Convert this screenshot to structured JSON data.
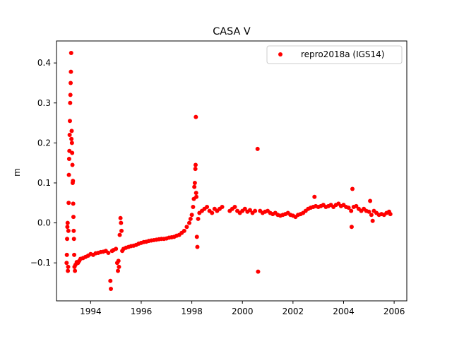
{
  "chart_data": {
    "type": "scatter",
    "title": "CASA V",
    "xlabel": "",
    "ylabel": "m",
    "xlim": [
      1992.65,
      2006.5
    ],
    "ylim": [
      -0.195,
      0.455
    ],
    "x_ticks": [
      1994,
      1996,
      1998,
      2000,
      2002,
      2004,
      2006
    ],
    "x_tick_labels": [
      "1994",
      "1996",
      "1998",
      "2000",
      "2002",
      "2004",
      "2006"
    ],
    "y_ticks": [
      -0.1,
      0.0,
      0.1,
      0.2,
      0.3,
      0.4
    ],
    "y_tick_labels": [
      "−0.1",
      "0.0",
      "0.1",
      "0.2",
      "0.3",
      "0.4"
    ],
    "grid": false,
    "legend_position": "top-right",
    "series": [
      {
        "name": "repro2018a (IGS14)",
        "color": "#ff0000",
        "marker": "circle",
        "points": [
          [
            1993.05,
            -0.1
          ],
          [
            1993.06,
            -0.08
          ],
          [
            1993.07,
            -0.04
          ],
          [
            1993.08,
            -0.01
          ],
          [
            1993.09,
            0.0
          ],
          [
            1993.1,
            -0.12
          ],
          [
            1993.11,
            -0.11
          ],
          [
            1993.12,
            -0.02
          ],
          [
            1993.13,
            0.05
          ],
          [
            1993.14,
            0.12
          ],
          [
            1993.15,
            0.16
          ],
          [
            1993.16,
            0.18
          ],
          [
            1993.17,
            0.22
          ],
          [
            1993.18,
            0.255
          ],
          [
            1993.19,
            0.3
          ],
          [
            1993.2,
            0.32
          ],
          [
            1993.21,
            0.35
          ],
          [
            1993.22,
            0.378
          ],
          [
            1993.23,
            0.425
          ],
          [
            1993.24,
            0.21
          ],
          [
            1993.25,
            0.23
          ],
          [
            1993.26,
            0.2
          ],
          [
            1993.27,
            0.175
          ],
          [
            1993.28,
            0.145
          ],
          [
            1993.29,
            0.1
          ],
          [
            1993.3,
            0.105
          ],
          [
            1993.31,
            0.048
          ],
          [
            1993.32,
            0.015
          ],
          [
            1993.33,
            -0.02
          ],
          [
            1993.34,
            -0.04
          ],
          [
            1993.35,
            -0.08
          ],
          [
            1993.36,
            -0.11
          ],
          [
            1993.38,
            -0.12
          ],
          [
            1993.4,
            -0.105
          ],
          [
            1993.45,
            -0.098
          ],
          [
            1993.5,
            -0.1
          ],
          [
            1993.55,
            -0.095
          ],
          [
            1993.6,
            -0.09
          ],
          [
            1993.7,
            -0.088
          ],
          [
            1993.8,
            -0.085
          ],
          [
            1993.9,
            -0.082
          ],
          [
            1994.0,
            -0.078
          ],
          [
            1994.1,
            -0.08
          ],
          [
            1994.2,
            -0.076
          ],
          [
            1994.3,
            -0.075
          ],
          [
            1994.4,
            -0.073
          ],
          [
            1994.5,
            -0.072
          ],
          [
            1994.6,
            -0.07
          ],
          [
            1994.7,
            -0.075
          ],
          [
            1994.78,
            -0.145
          ],
          [
            1994.8,
            -0.165
          ],
          [
            1994.85,
            -0.07
          ],
          [
            1994.9,
            -0.068
          ],
          [
            1995.0,
            -0.065
          ],
          [
            1995.05,
            -0.1
          ],
          [
            1995.08,
            -0.12
          ],
          [
            1995.1,
            -0.095
          ],
          [
            1995.12,
            -0.11
          ],
          [
            1995.15,
            -0.03
          ],
          [
            1995.18,
            0.012
          ],
          [
            1995.2,
            0.0
          ],
          [
            1995.22,
            -0.02
          ],
          [
            1995.25,
            -0.07
          ],
          [
            1995.3,
            -0.065
          ],
          [
            1995.4,
            -0.062
          ],
          [
            1995.5,
            -0.06
          ],
          [
            1995.6,
            -0.058
          ],
          [
            1995.7,
            -0.057
          ],
          [
            1995.8,
            -0.055
          ],
          [
            1995.9,
            -0.052
          ],
          [
            1996.0,
            -0.05
          ],
          [
            1996.1,
            -0.048
          ],
          [
            1996.2,
            -0.047
          ],
          [
            1996.3,
            -0.045
          ],
          [
            1996.4,
            -0.044
          ],
          [
            1996.5,
            -0.043
          ],
          [
            1996.6,
            -0.042
          ],
          [
            1996.7,
            -0.041
          ],
          [
            1996.8,
            -0.04
          ],
          [
            1996.9,
            -0.04
          ],
          [
            1997.0,
            -0.039
          ],
          [
            1997.1,
            -0.037
          ],
          [
            1997.2,
            -0.036
          ],
          [
            1997.3,
            -0.035
          ],
          [
            1997.4,
            -0.032
          ],
          [
            1997.5,
            -0.03
          ],
          [
            1997.6,
            -0.025
          ],
          [
            1997.7,
            -0.02
          ],
          [
            1997.8,
            -0.01
          ],
          [
            1997.9,
            0.0
          ],
          [
            1997.95,
            0.01
          ],
          [
            1998.0,
            0.02
          ],
          [
            1998.05,
            0.04
          ],
          [
            1998.08,
            0.06
          ],
          [
            1998.1,
            0.09
          ],
          [
            1998.12,
            0.1
          ],
          [
            1998.14,
            0.135
          ],
          [
            1998.15,
            0.145
          ],
          [
            1998.16,
            0.265
          ],
          [
            1998.17,
            0.075
          ],
          [
            1998.18,
            0.065
          ],
          [
            1998.2,
            -0.035
          ],
          [
            1998.22,
            -0.06
          ],
          [
            1998.25,
            0.01
          ],
          [
            1998.3,
            0.025
          ],
          [
            1998.4,
            0.03
          ],
          [
            1998.5,
            0.035
          ],
          [
            1998.6,
            0.04
          ],
          [
            1998.7,
            0.03
          ],
          [
            1998.8,
            0.025
          ],
          [
            1998.9,
            0.035
          ],
          [
            1999.0,
            0.03
          ],
          [
            1999.1,
            0.035
          ],
          [
            1999.2,
            0.04
          ],
          [
            1999.5,
            0.03
          ],
          [
            1999.6,
            0.035
          ],
          [
            1999.7,
            0.04
          ],
          [
            1999.8,
            0.03
          ],
          [
            1999.9,
            0.025
          ],
          [
            2000.0,
            0.03
          ],
          [
            2000.1,
            0.035
          ],
          [
            2000.2,
            0.028
          ],
          [
            2000.3,
            0.032
          ],
          [
            2000.4,
            0.025
          ],
          [
            2000.5,
            0.03
          ],
          [
            2000.6,
            0.185
          ],
          [
            2000.62,
            -0.122
          ],
          [
            2000.7,
            0.03
          ],
          [
            2000.8,
            0.025
          ],
          [
            2000.9,
            0.028
          ],
          [
            2001.0,
            0.03
          ],
          [
            2001.1,
            0.025
          ],
          [
            2001.2,
            0.022
          ],
          [
            2001.3,
            0.025
          ],
          [
            2001.4,
            0.02
          ],
          [
            2001.5,
            0.018
          ],
          [
            2001.6,
            0.02
          ],
          [
            2001.7,
            0.022
          ],
          [
            2001.8,
            0.025
          ],
          [
            2001.9,
            0.02
          ],
          [
            2002.0,
            0.018
          ],
          [
            2002.1,
            0.015
          ],
          [
            2002.2,
            0.02
          ],
          [
            2002.3,
            0.022
          ],
          [
            2002.4,
            0.025
          ],
          [
            2002.5,
            0.03
          ],
          [
            2002.6,
            0.035
          ],
          [
            2002.7,
            0.038
          ],
          [
            2002.8,
            0.04
          ],
          [
            2002.85,
            0.065
          ],
          [
            2002.9,
            0.042
          ],
          [
            2003.0,
            0.04
          ],
          [
            2003.1,
            0.042
          ],
          [
            2003.2,
            0.045
          ],
          [
            2003.3,
            0.04
          ],
          [
            2003.4,
            0.042
          ],
          [
            2003.5,
            0.045
          ],
          [
            2003.6,
            0.04
          ],
          [
            2003.7,
            0.045
          ],
          [
            2003.8,
            0.048
          ],
          [
            2003.9,
            0.042
          ],
          [
            2004.0,
            0.045
          ],
          [
            2004.1,
            0.04
          ],
          [
            2004.2,
            0.038
          ],
          [
            2004.3,
            0.03
          ],
          [
            2004.32,
            -0.01
          ],
          [
            2004.35,
            0.085
          ],
          [
            2004.4,
            0.04
          ],
          [
            2004.5,
            0.042
          ],
          [
            2004.6,
            0.035
          ],
          [
            2004.7,
            0.03
          ],
          [
            2004.8,
            0.035
          ],
          [
            2004.9,
            0.03
          ],
          [
            2005.0,
            0.028
          ],
          [
            2005.05,
            0.055
          ],
          [
            2005.1,
            0.02
          ],
          [
            2005.15,
            0.005
          ],
          [
            2005.2,
            0.03
          ],
          [
            2005.3,
            0.025
          ],
          [
            2005.4,
            0.02
          ],
          [
            2005.5,
            0.022
          ],
          [
            2005.6,
            0.02
          ],
          [
            2005.7,
            0.025
          ],
          [
            2005.8,
            0.028
          ],
          [
            2005.85,
            0.022
          ]
        ]
      }
    ]
  }
}
